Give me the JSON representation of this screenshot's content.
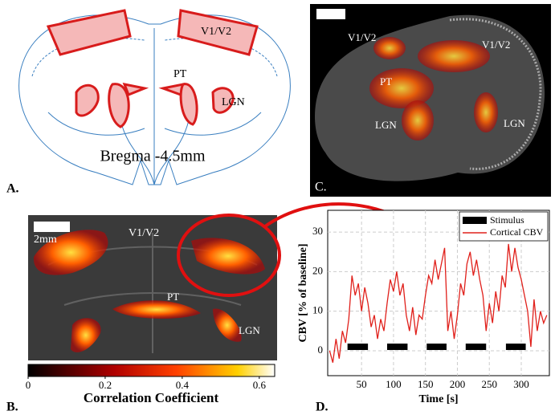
{
  "panel_labels": [
    "A.",
    "B.",
    "C.",
    "D."
  ],
  "atlas": {
    "labels": [
      "V1/V2",
      "PT",
      "LGN"
    ],
    "bregma": "Bregma -4.5mm"
  },
  "render": {
    "labels": [
      "V1/V2",
      "V1/V2",
      "PT",
      "LGN",
      "LGN"
    ]
  },
  "map": {
    "scale": "2mm",
    "labels": [
      "V1/V2",
      "PT",
      "LGN"
    ],
    "colorbar": {
      "label": "Correlation Coefficient",
      "lim": [
        0,
        0.64
      ],
      "ticks": [
        0,
        0.2,
        0.4,
        0.6
      ]
    }
  },
  "chart_data": {
    "type": "line",
    "x": [
      0,
      5,
      10,
      15,
      20,
      25,
      30,
      35,
      40,
      45,
      50,
      55,
      60,
      65,
      70,
      75,
      80,
      85,
      90,
      95,
      100,
      105,
      110,
      115,
      120,
      125,
      130,
      135,
      140,
      145,
      150,
      155,
      160,
      165,
      170,
      175,
      180,
      185,
      190,
      195,
      200,
      205,
      210,
      215,
      220,
      225,
      230,
      235,
      240,
      245,
      250,
      255,
      260,
      265,
      270,
      275,
      280,
      285,
      290,
      295,
      300,
      305,
      310,
      315,
      320,
      325,
      330,
      335,
      340
    ],
    "series": [
      {
        "name": "Cortical CBV",
        "color": "#e0201b",
        "values": [
          0,
          -3,
          3,
          -2,
          5,
          2,
          8,
          19,
          14,
          17,
          10,
          16,
          12,
          6,
          9,
          3,
          8,
          5,
          12,
          18,
          15,
          20,
          14,
          17,
          9,
          5,
          11,
          4,
          9,
          8,
          14,
          19,
          17,
          23,
          18,
          22,
          26,
          5,
          10,
          3,
          9,
          17,
          14,
          22,
          25,
          19,
          23,
          18,
          14,
          5,
          12,
          7,
          15,
          10,
          19,
          16,
          27,
          20,
          26,
          21,
          18,
          14,
          10,
          1,
          13,
          5,
          10,
          7,
          9
        ]
      }
    ],
    "stimulus": {
      "name": "Stimulus",
      "color": "#000000",
      "level": 1,
      "intervals": [
        [
          28,
          60
        ],
        [
          90,
          122
        ],
        [
          152,
          183
        ],
        [
          213,
          245
        ],
        [
          276,
          307
        ]
      ]
    },
    "xlabel": "Time [s]",
    "ylabel": "CBV [% of baseline]",
    "xlim": [
      -3,
      344
    ],
    "xticks": [
      50,
      100,
      150,
      200,
      250,
      300
    ],
    "ylim": [
      -6.3,
      35.5
    ],
    "yticks": [
      0,
      10,
      20,
      30
    ],
    "grid": true,
    "legend": "upper right"
  }
}
